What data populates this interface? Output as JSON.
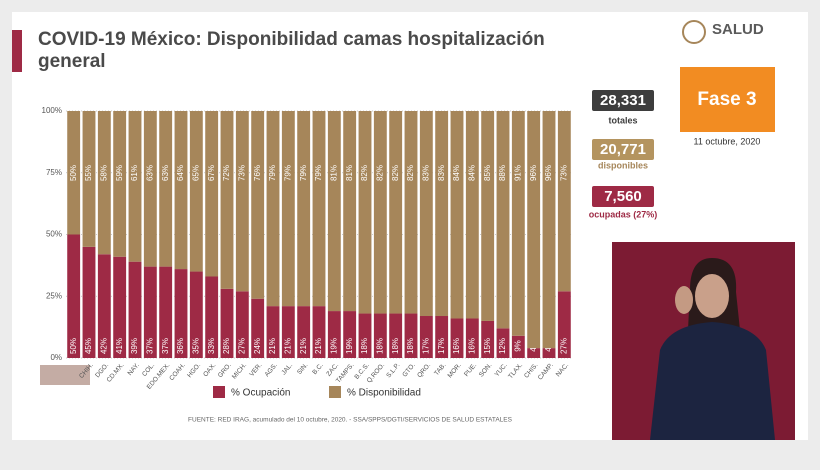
{
  "logo": "SALUD",
  "phase": "Fase 3",
  "date": "11 octubre, 2020",
  "stats": [
    {
      "value": "28,331",
      "label": "totales"
    },
    {
      "value": "20,771",
      "label": "disponibles"
    },
    {
      "value": "7,560",
      "label": "ocupadas (27%)"
    }
  ],
  "chart_data": {
    "type": "stacked_bar",
    "title": "COVID-19 México: Disponibilidad camas hospitalización general",
    "categories": [
      null,
      "CHIH.",
      "DGO.",
      "CD.MX.",
      "NAY.",
      "COL.",
      "EDO.MEX.",
      "COAH.",
      "HGO.",
      "OAX.",
      "GRO.",
      "MICH.",
      "VER.",
      "AGS.",
      "JAL.",
      "SIN.",
      "B.C.",
      "ZAC.",
      "TAMPS.",
      "B.C.S.",
      "Q.ROO.",
      "S.L.P.",
      "GTO.",
      "QRO.",
      "TAB.",
      "MOR.",
      "PUE.",
      "SON.",
      "YUC.",
      "TLAX.",
      "CHIS.",
      "CAMP.",
      "NAC."
    ],
    "series": [
      {
        "name": "% Ocupación",
        "color": "#9e2a45",
        "values": [
          50,
          45,
          42,
          41,
          39,
          37,
          37,
          36,
          35,
          33,
          28,
          27,
          24,
          21,
          21,
          21,
          21,
          19,
          19,
          18,
          18,
          18,
          18,
          17,
          17,
          16,
          16,
          15,
          12,
          9,
          4,
          4,
          27
        ],
        "value_labels": [
          "50%",
          "45%",
          "42%",
          "41%",
          "39%",
          "37%",
          "37%",
          "36%",
          "35%",
          "33%",
          "28%",
          "27%",
          "24%",
          "21%",
          "21%",
          "21%",
          "21%",
          "19%",
          "19%",
          "18%",
          "18%",
          "18%",
          "18%",
          "17%",
          "17%",
          "16%",
          "16%",
          "15%",
          "12%",
          "9%",
          "4%",
          "4%",
          "27%"
        ]
      },
      {
        "name": "% Disponibilidad",
        "color": "#a6865a",
        "values": [
          50,
          55,
          58,
          59,
          61,
          63,
          63,
          64,
          65,
          67,
          72,
          73,
          76,
          79,
          79,
          79,
          79,
          81,
          81,
          82,
          82,
          82,
          82,
          83,
          83,
          84,
          84,
          85,
          88,
          91,
          96,
          96,
          73
        ],
        "value_labels": [
          "50%",
          "55%",
          "58%",
          "59%",
          "61%",
          "63%",
          "63%",
          "64%",
          "65%",
          "67%",
          "72%",
          "73%",
          "76%",
          "79%",
          "79%",
          "79%",
          "79%",
          "81%",
          "81%",
          "82%",
          "82%",
          "82%",
          "82%",
          "83%",
          "83%",
          "84%",
          "84%",
          "85%",
          "88%",
          "91%",
          "96%",
          "96%",
          "73%"
        ]
      }
    ],
    "ylim": [
      0,
      100
    ],
    "yticks": [
      {
        "value": 0,
        "label": "0%"
      },
      {
        "value": 25,
        "label": "25%"
      },
      {
        "value": 50,
        "label": "50%"
      },
      {
        "value": 75,
        "label": "75%"
      },
      {
        "value": 100,
        "label": "100%"
      }
    ],
    "grid": true,
    "footnote": "FUENTE: RED IRAG, acumulado del 10 octubre, 2020. - SSA/SPPS/DGTI/SERVICIOS DE SALUD ESTATALES"
  }
}
